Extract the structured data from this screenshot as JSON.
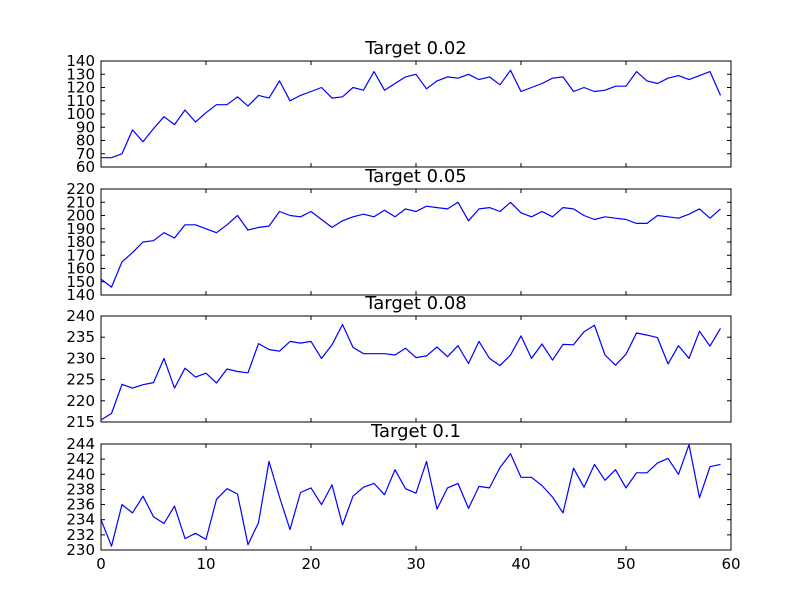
{
  "chart_data": [
    {
      "type": "line",
      "title": "Target 0.02",
      "xlim": [
        0,
        60
      ],
      "ylim": [
        60,
        140
      ],
      "yticks": [
        60,
        70,
        80,
        90,
        100,
        110,
        120,
        130,
        140
      ],
      "xticks": [],
      "color": "#0000ff",
      "series": [
        {
          "x": [
            0,
            1,
            2,
            3,
            4,
            5,
            6,
            7,
            8,
            9,
            10,
            11,
            12,
            13,
            14,
            15,
            16,
            17,
            18,
            19,
            20,
            21,
            22,
            23,
            24,
            25,
            26,
            27,
            28,
            29,
            30,
            31,
            32,
            33,
            34,
            35,
            36,
            37,
            38,
            39,
            40,
            41,
            42,
            43,
            44,
            45,
            46,
            47,
            48,
            49,
            50,
            51,
            52,
            53,
            54,
            55,
            56,
            57,
            58,
            59
          ],
          "y": [
            67,
            67,
            70,
            88,
            79,
            89,
            98,
            92,
            103,
            94,
            101,
            107,
            107,
            113,
            106,
            114,
            112,
            125,
            110,
            114,
            117,
            120,
            112,
            113,
            120,
            118,
            132,
            118,
            123,
            128,
            130,
            119,
            125,
            128,
            127,
            130,
            126,
            128,
            122,
            133,
            117,
            120,
            123,
            127,
            128,
            117,
            120,
            117,
            118,
            121,
            121,
            132,
            125,
            123,
            127,
            129,
            126,
            129,
            132,
            114
          ]
        }
      ]
    },
    {
      "type": "line",
      "title": "Target 0.05",
      "xlim": [
        0,
        60
      ],
      "ylim": [
        140,
        220
      ],
      "yticks": [
        140,
        150,
        160,
        170,
        180,
        190,
        200,
        210,
        220
      ],
      "xticks": [],
      "color": "#0000ff",
      "series": [
        {
          "x": [
            0,
            1,
            2,
            3,
            4,
            5,
            6,
            7,
            8,
            9,
            10,
            11,
            12,
            13,
            14,
            15,
            16,
            17,
            18,
            19,
            20,
            21,
            22,
            23,
            24,
            25,
            26,
            27,
            28,
            29,
            30,
            31,
            32,
            33,
            34,
            35,
            36,
            37,
            38,
            39,
            40,
            41,
            42,
            43,
            44,
            45,
            46,
            47,
            48,
            49,
            50,
            51,
            52,
            53,
            54,
            55,
            56,
            57,
            58,
            59
          ],
          "y": [
            152,
            146,
            165,
            172,
            180,
            181,
            187,
            183,
            193,
            193,
            190,
            187,
            193,
            200,
            189,
            191,
            192,
            203,
            200,
            199,
            203,
            197,
            191,
            196,
            199,
            201,
            199,
            204,
            199,
            205,
            203,
            207,
            206,
            205,
            210,
            196,
            205,
            206,
            203,
            210,
            202,
            199,
            203,
            199,
            206,
            205,
            200,
            197,
            199,
            198,
            197,
            194,
            194,
            200,
            199,
            198,
            201,
            205,
            198,
            205
          ]
        }
      ]
    },
    {
      "type": "line",
      "title": "Target 0.08",
      "xlim": [
        0,
        60
      ],
      "ylim": [
        215,
        240
      ],
      "yticks": [
        215,
        220,
        225,
        230,
        235,
        240
      ],
      "xticks": [],
      "color": "#0000ff",
      "series": [
        {
          "x": [
            0,
            1,
            2,
            3,
            4,
            5,
            6,
            7,
            8,
            9,
            10,
            11,
            12,
            13,
            14,
            15,
            16,
            17,
            18,
            19,
            20,
            21,
            22,
            23,
            24,
            25,
            26,
            27,
            28,
            29,
            30,
            31,
            32,
            33,
            34,
            35,
            36,
            37,
            38,
            39,
            40,
            41,
            42,
            43,
            44,
            45,
            46,
            47,
            48,
            49,
            50,
            51,
            52,
            53,
            54,
            55,
            56,
            57,
            58,
            59
          ],
          "y": [
            215.5,
            217,
            223.9,
            223,
            223.8,
            224.3,
            230,
            223,
            227.7,
            225.6,
            226.5,
            224.2,
            227.5,
            226.9,
            226.6,
            233.5,
            232.1,
            231.7,
            234,
            233.6,
            234,
            230,
            233.2,
            238,
            232.6,
            231.1,
            231.1,
            231.1,
            230.8,
            232.4,
            230.2,
            230.6,
            232.7,
            230.4,
            233,
            228.8,
            234,
            230,
            228.3,
            230.8,
            235.3,
            230,
            233.4,
            229.6,
            233.3,
            233.2,
            236.3,
            237.8,
            230.8,
            228.4,
            231,
            236,
            235.5,
            234.9,
            228.7,
            233,
            230,
            236.4,
            232.9,
            237.1
          ]
        }
      ]
    },
    {
      "type": "line",
      "title": "Target 0.1",
      "xlim": [
        0,
        60
      ],
      "ylim": [
        230,
        244
      ],
      "yticks": [
        230,
        232,
        234,
        236,
        238,
        240,
        242,
        244
      ],
      "xticks": [
        0,
        10,
        20,
        30,
        40,
        50,
        60
      ],
      "color": "#0000ff",
      "series": [
        {
          "x": [
            0,
            1,
            2,
            3,
            4,
            5,
            6,
            7,
            8,
            9,
            10,
            11,
            12,
            13,
            14,
            15,
            16,
            17,
            18,
            19,
            20,
            21,
            22,
            23,
            24,
            25,
            26,
            27,
            28,
            29,
            30,
            31,
            32,
            33,
            34,
            35,
            36,
            37,
            38,
            39,
            40,
            41,
            42,
            43,
            44,
            45,
            46,
            47,
            48,
            49,
            50,
            51,
            52,
            53,
            54,
            55,
            56,
            57,
            58,
            59
          ],
          "y": [
            234,
            230.5,
            236,
            234.9,
            237.1,
            234.4,
            233.5,
            235.8,
            231.5,
            232.2,
            231.4,
            236.7,
            238.1,
            237.4,
            230.7,
            233.6,
            241.7,
            237,
            232.7,
            237.6,
            238.2,
            236,
            238.6,
            233.3,
            237.1,
            238.3,
            238.8,
            237.3,
            240.6,
            238.1,
            237.5,
            241.7,
            235.4,
            238.2,
            238.8,
            235.5,
            238.4,
            238.2,
            240.9,
            242.7,
            239.6,
            239.6,
            238.5,
            237,
            234.9,
            240.8,
            238.3,
            241.3,
            239.2,
            240.6,
            238.2,
            240.2,
            240.2,
            241.5,
            242.1,
            240,
            243.9,
            236.9,
            241,
            241.3
          ]
        }
      ]
    }
  ]
}
